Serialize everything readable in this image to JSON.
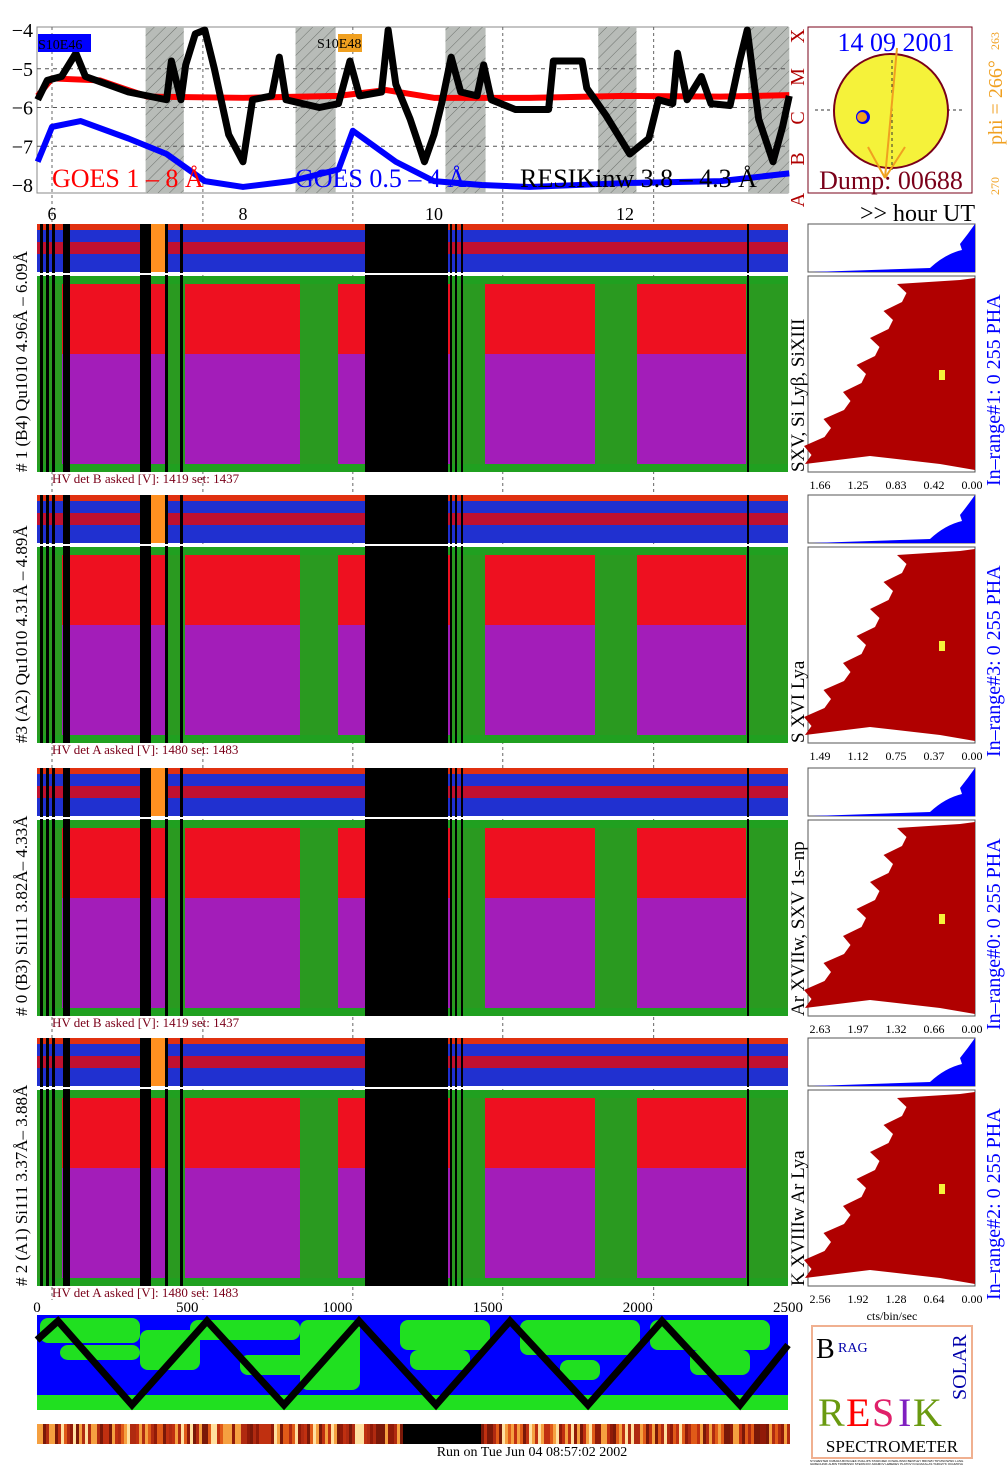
{
  "colors": {
    "goes_long": "#ff0000",
    "goes_short": "#0000ff",
    "resik": "#000000",
    "night": "#b8bcb8",
    "hv_text": "#7a0019",
    "histogram": "#b00000",
    "pha": "#0000ff",
    "sun": "#f5f23a",
    "phi": "#f0a020"
  },
  "chart_data": [
    {
      "type": "line",
      "title": "",
      "xlabel": ">> hour UT",
      "ylabel": "",
      "xlim": [
        5.85,
        13.75
      ],
      "ylim": [
        -8.2,
        -4
      ],
      "x_ticks": [
        "6",
        "8",
        "10",
        "12"
      ],
      "y_ticks": [
        "-4",
        "-5",
        "-6",
        "-7",
        "-8"
      ],
      "class_labels": [
        "X",
        "M",
        "C",
        "B",
        "A"
      ],
      "grid": true,
      "active_regions": [
        {
          "label": "S10E46",
          "color": "#0000ff"
        },
        {
          "label": "S10E48",
          "color": "#f0a020"
        }
      ],
      "night_intervals_hours": [
        [
          6.98,
          7.38
        ],
        [
          8.55,
          8.97
        ],
        [
          10.12,
          10.54
        ],
        [
          11.72,
          12.12
        ],
        [
          13.29,
          13.72
        ]
      ],
      "series": [
        {
          "name": "GOES 1 – 8 Å",
          "color": "#ff0000",
          "points": [
            [
              5.85,
              -5.7
            ],
            [
              6.0,
              -5.25
            ],
            [
              6.5,
              -5.3
            ],
            [
              7.0,
              -5.72
            ],
            [
              8,
              -5.75
            ],
            [
              9,
              -5.7
            ],
            [
              9.5,
              -5.55
            ],
            [
              10,
              -5.75
            ],
            [
              11,
              -5.75
            ],
            [
              12,
              -5.7
            ],
            [
              13,
              -5.72
            ],
            [
              13.72,
              -5.68
            ]
          ]
        },
        {
          "name": "GOES 0.5 – 4 Å",
          "color": "#0000ff",
          "points": [
            [
              5.85,
              -7.4
            ],
            [
              6.0,
              -6.5
            ],
            [
              6.3,
              -6.35
            ],
            [
              6.8,
              -6.8
            ],
            [
              7.2,
              -7.2
            ],
            [
              7.6,
              -7.9
            ],
            [
              8,
              -8.05
            ],
            [
              8.5,
              -7.9
            ],
            [
              9,
              -7.6
            ],
            [
              9.15,
              -6.6
            ],
            [
              9.6,
              -7.4
            ],
            [
              10,
              -7.9
            ],
            [
              10.5,
              -8.0
            ],
            [
              11,
              -8.05
            ],
            [
              12,
              -7.95
            ],
            [
              13,
              -7.9
            ],
            [
              13.72,
              -7.7
            ]
          ]
        },
        {
          "name": "RESIKinw 3.8 – 4.3 Å",
          "color": "#000000",
          "points": [
            [
              5.85,
              -5.8
            ],
            [
              5.95,
              -5.3
            ],
            [
              6.1,
              -5.2
            ],
            [
              6.25,
              -4.6
            ],
            [
              6.35,
              -5.2
            ],
            [
              6.8,
              -5.6
            ],
            [
              7.2,
              -5.8
            ],
            [
              7.25,
              -4.8
            ],
            [
              7.35,
              -5.8
            ],
            [
              7.4,
              -4.9
            ],
            [
              7.5,
              -4.1
            ],
            [
              7.6,
              -4.0
            ],
            [
              7.7,
              -5.0
            ],
            [
              7.85,
              -6.7
            ],
            [
              8.0,
              -7.4
            ],
            [
              8.1,
              -5.8
            ],
            [
              8.3,
              -5.7
            ],
            [
              8.38,
              -4.7
            ],
            [
              8.45,
              -5.8
            ],
            [
              8.8,
              -6.0
            ],
            [
              9.0,
              -5.9
            ],
            [
              9.12,
              -4.8
            ],
            [
              9.22,
              -5.7
            ],
            [
              9.45,
              -5.6
            ],
            [
              9.52,
              -4.0
            ],
            [
              9.6,
              -5.4
            ],
            [
              9.75,
              -6.3
            ],
            [
              9.9,
              -7.4
            ],
            [
              10.0,
              -6.7
            ],
            [
              10.08,
              -5.9
            ],
            [
              10.18,
              -4.7
            ],
            [
              10.28,
              -5.6
            ],
            [
              10.45,
              -5.7
            ],
            [
              10.52,
              -4.9
            ],
            [
              10.6,
              -5.8
            ],
            [
              10.85,
              -6.05
            ],
            [
              11.2,
              -6.05
            ],
            [
              11.25,
              -4.8
            ],
            [
              11.55,
              -4.8
            ],
            [
              11.6,
              -5.5
            ],
            [
              11.8,
              -6.2
            ],
            [
              12.05,
              -7.2
            ],
            [
              12.25,
              -6.8
            ],
            [
              12.35,
              -5.8
            ],
            [
              12.5,
              -5.9
            ],
            [
              12.55,
              -4.6
            ],
            [
              12.65,
              -5.8
            ],
            [
              12.8,
              -5.2
            ],
            [
              12.9,
              -5.9
            ],
            [
              13.1,
              -5.95
            ],
            [
              13.2,
              -4.8
            ],
            [
              13.28,
              -4.0
            ],
            [
              13.4,
              -6.3
            ],
            [
              13.55,
              -7.4
            ],
            [
              13.65,
              -6.5
            ],
            [
              13.72,
              -5.7
            ]
          ]
        }
      ],
      "legend_labels": [
        "GOES 1 – 8 Å",
        "GOES 0.5 – 4 Å",
        "RESIKinw 3.8 – 4.3 Å"
      ]
    },
    {
      "type": "heatmap",
      "xlabel": "",
      "x_ticks": [
        "0",
        "500",
        "1000",
        "1500",
        "2000",
        "2500"
      ],
      "xlim": [
        0,
        2500
      ],
      "panels": [
        {
          "label": "# 1 (B4) Qu1010 4.96Å – 6.09Å",
          "lines": "SXV, Si Lyβ, SiXIII",
          "hv": {
            "det": "B",
            "asked": "1419",
            "set": "1437"
          },
          "hist_ticks": [
            "1.66",
            "1.25",
            "0.83",
            "0.42",
            "0.00"
          ],
          "range": "In–range#1:   0 255   PHA"
        },
        {
          "label": "#3 (A2) Qu1010  4.31Å – 4.89Å",
          "lines": "S XVI Lya",
          "hv": {
            "det": "A",
            "asked": "1480",
            "set": "1483"
          },
          "hist_ticks": [
            "1.49",
            "1.12",
            "0.75",
            "0.37",
            "0.00"
          ],
          "range": "In–range#3:   0 255   PHA"
        },
        {
          "label": "# 0 (B3) Si111  3.82Å– 4.33Å",
          "lines": "Ar XVIIw,  SXV 1s–np",
          "hv": {
            "det": "B",
            "asked": "1419",
            "set": "1437"
          },
          "hist_ticks": [
            "2.63",
            "1.97",
            "1.32",
            "0.66",
            "0.00"
          ],
          "range": "In–range#0:   0 255   PHA"
        },
        {
          "label": "# 2 (A1) Si111  3.37Å– 3.88Å",
          "lines": "K XVIIIw  Ar Lya",
          "hv": {
            "det": "A",
            "asked": "1480",
            "set": "1483"
          },
          "hist_ticks": [
            "2.56",
            "1.92",
            "1.28",
            "0.64",
            "0.00"
          ],
          "range": "In–range#2:   0 255   PHA"
        }
      ],
      "hist_xlabel": "cts/bin/sec"
    }
  ],
  "sun_panel": {
    "date": "14 09 2001",
    "dump": "Dump: 00688",
    "phi": "phi = 266°",
    "phi_small": "263",
    "phi_270": "270"
  },
  "hv_prefix": "HV det ",
  "hv_asked": " asked [V]:  ",
  "hv_set": " set:  ",
  "hour_ut": ">> hour UT",
  "logo": {
    "letters": "RESIK",
    "top": "BRAG",
    "side": "SOLAR",
    "word": "SPECTROMETER",
    "credits": "SYLWESTER KUBARA BOSCHEK PHILLIPS STARCZEK KOWALINSKI BENTLEY BROWN TRYZNOWSKI LANG GRZECHNIK ALBIN TROBINSKI STEPANOV ARAMOV LEBEDEV PLATOV KOLDAKALAS TARCZYK OCHMOVA"
  },
  "footer": "Run on Tue Jun 04 08:57:02 2002"
}
